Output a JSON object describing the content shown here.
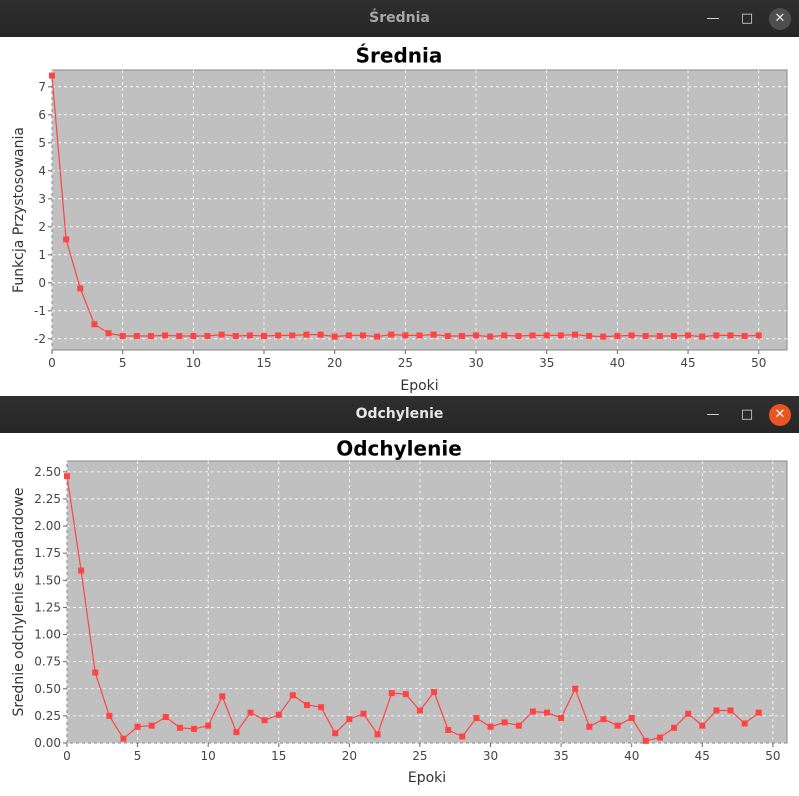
{
  "windows": [
    {
      "title": "Średnia"
    },
    {
      "title": "Odchylenie"
    }
  ],
  "icons": {
    "minimize": "minimize-icon",
    "maximize": "maximize-icon",
    "close": "close-icon"
  },
  "colors": {
    "series": "#ff4444",
    "plot_bg": "#c0c0c0",
    "grid": "#ffffff",
    "close_active": "#e95420"
  },
  "chart_data": [
    {
      "type": "line",
      "title": "Średnia",
      "xlabel": "Epoki",
      "ylabel": "Funkcja Przystosowania",
      "xlim": [
        0,
        52
      ],
      "ylim": [
        -2.4,
        7.6
      ],
      "xticks": [
        0,
        5,
        10,
        15,
        20,
        25,
        30,
        35,
        40,
        45,
        50
      ],
      "yticks": [
        -2,
        -1,
        0,
        1,
        2,
        3,
        4,
        5,
        6,
        7
      ],
      "grid": true,
      "series": [
        {
          "x": [
            0,
            1,
            2,
            3,
            4,
            5,
            6,
            7,
            8,
            9,
            10,
            11,
            12,
            13,
            14,
            15,
            16,
            17,
            18,
            19,
            20,
            21,
            22,
            23,
            24,
            25,
            26,
            27,
            28,
            29,
            30,
            31,
            32,
            33,
            34,
            35,
            36,
            37,
            38,
            39,
            40,
            41,
            42,
            43,
            44,
            45,
            46,
            47,
            48,
            49,
            50
          ],
          "values": [
            7.4,
            1.55,
            -0.2,
            -1.48,
            -1.8,
            -1.9,
            -1.9,
            -1.9,
            -1.88,
            -1.9,
            -1.9,
            -1.9,
            -1.85,
            -1.9,
            -1.88,
            -1.9,
            -1.88,
            -1.88,
            -1.85,
            -1.85,
            -1.92,
            -1.88,
            -1.88,
            -1.92,
            -1.85,
            -1.88,
            -1.88,
            -1.85,
            -1.9,
            -1.9,
            -1.88,
            -1.92,
            -1.88,
            -1.9,
            -1.88,
            -1.88,
            -1.88,
            -1.85,
            -1.9,
            -1.92,
            -1.9,
            -1.88,
            -1.9,
            -1.9,
            -1.9,
            -1.88,
            -1.92,
            -1.88,
            -1.88,
            -1.9,
            -1.88
          ]
        }
      ]
    },
    {
      "type": "line",
      "title": "Odchylenie",
      "xlabel": "Epoki",
      "ylabel": "Srednie odchylenie standardowe",
      "xlim": [
        0,
        51
      ],
      "ylim": [
        0,
        2.6
      ],
      "xticks": [
        0,
        5,
        10,
        15,
        20,
        25,
        30,
        35,
        40,
        45,
        50
      ],
      "yticks": [
        "0.00",
        "0.25",
        "0.50",
        "0.75",
        "1.00",
        "1.25",
        "1.50",
        "1.75",
        "2.00",
        "2.25",
        "2.50"
      ],
      "grid": true,
      "series": [
        {
          "x": [
            0,
            1,
            2,
            3,
            4,
            5,
            6,
            7,
            8,
            9,
            10,
            11,
            12,
            13,
            14,
            15,
            16,
            17,
            18,
            19,
            20,
            21,
            22,
            23,
            24,
            25,
            26,
            27,
            28,
            29,
            30,
            31,
            32,
            33,
            34,
            35,
            36,
            37,
            38,
            39,
            40,
            41,
            42,
            43,
            44,
            45,
            46,
            47,
            48,
            49
          ],
          "values": [
            2.46,
            1.59,
            0.65,
            0.25,
            0.04,
            0.15,
            0.16,
            0.24,
            0.14,
            0.13,
            0.16,
            0.43,
            0.1,
            0.28,
            0.21,
            0.26,
            0.44,
            0.35,
            0.33,
            0.09,
            0.22,
            0.27,
            0.08,
            0.46,
            0.45,
            0.3,
            0.47,
            0.12,
            0.06,
            0.23,
            0.15,
            0.19,
            0.16,
            0.29,
            0.28,
            0.23,
            0.5,
            0.15,
            0.22,
            0.16,
            0.23,
            0.02,
            0.05,
            0.14,
            0.27,
            0.16,
            0.3,
            0.3,
            0.18,
            0.28
          ]
        }
      ]
    }
  ]
}
